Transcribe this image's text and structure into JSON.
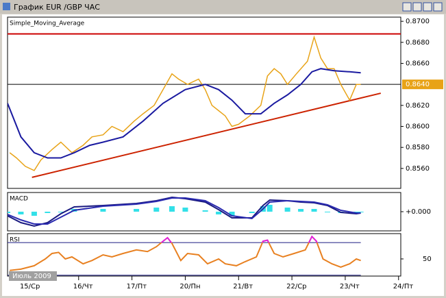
{
  "window": {
    "title": "График EUR /GBP  ЧАС",
    "period_label": "Июль 2009"
  },
  "chart_data": [
    {
      "type": "line",
      "title": "Simple_Moving_Average",
      "xlim": [
        -8,
        169
      ],
      "ylim": [
        0.8541,
        0.8704
      ],
      "yticks": [
        {
          "value": 0.87,
          "label": "0.8700"
        },
        {
          "value": 0.868,
          "label": "0.8680"
        },
        {
          "value": 0.866,
          "label": "0.8660"
        },
        {
          "value": 0.862,
          "label": "0.8620"
        },
        {
          "value": 0.86,
          "label": "0.8600"
        },
        {
          "value": 0.858,
          "label": "0.8580"
        },
        {
          "value": 0.856,
          "label": "0.8560"
        }
      ],
      "hlines": [
        {
          "value": 0.8688,
          "color": "#cc0000"
        },
        {
          "value": 0.864,
          "color": "#000000"
        }
      ],
      "trendline": {
        "x": [
          3,
          160
        ],
        "values": [
          0.85515,
          0.86316
        ],
        "color": "#cc2200"
      },
      "last_price": {
        "value": 0.864,
        "label": "0.8640",
        "color": "#e8a317"
      },
      "series": [
        {
          "color": "#e8a317",
          "x": [
            -7,
            -4,
            0,
            4,
            7,
            12,
            16,
            21,
            26,
            30,
            35,
            39,
            44,
            49,
            53,
            58,
            62,
            66,
            69,
            73,
            78,
            81,
            84,
            87,
            90,
            93,
            96,
            101,
            106,
            109,
            112,
            115,
            118,
            122,
            127,
            130,
            133,
            136,
            139,
            142,
            146,
            149,
            151
          ],
          "values": [
            0.8575,
            0.857,
            0.8562,
            0.8558,
            0.8568,
            0.8578,
            0.8585,
            0.8575,
            0.8582,
            0.859,
            0.8592,
            0.86,
            0.8595,
            0.8605,
            0.8612,
            0.862,
            0.8635,
            0.865,
            0.8645,
            0.864,
            0.8645,
            0.8635,
            0.862,
            0.8615,
            0.861,
            0.86,
            0.8602,
            0.861,
            0.862,
            0.8648,
            0.8655,
            0.865,
            0.864,
            0.865,
            0.8662,
            0.8685,
            0.8665,
            0.8655,
            0.8655,
            0.864,
            0.8625,
            0.864,
            0.864
          ]
        },
        {
          "name": "Simple_Moving_Average",
          "color": "#1a1aa0",
          "x": [
            -8,
            -2,
            4,
            10,
            16,
            22,
            29,
            35,
            44,
            53,
            62,
            72,
            81,
            87,
            93,
            99,
            106,
            112,
            118,
            124,
            129,
            133,
            139,
            146,
            151
          ],
          "values": [
            0.8622,
            0.859,
            0.8575,
            0.857,
            0.857,
            0.8575,
            0.8582,
            0.8585,
            0.859,
            0.8605,
            0.8622,
            0.8635,
            0.864,
            0.8635,
            0.8625,
            0.8612,
            0.8612,
            0.8622,
            0.863,
            0.864,
            0.8652,
            0.8655,
            0.8653,
            0.8652,
            0.8651
          ]
        }
      ]
    },
    {
      "type": "line",
      "title": "MACD",
      "xlim": [
        -8,
        169
      ],
      "ylim": [
        -0.0014,
        0.0014
      ],
      "yticks": [
        {
          "value": 0,
          "label": "+0.000"
        }
      ],
      "series": [
        {
          "type": "bar",
          "color": "#33e0e8",
          "x": [
            -8,
            -2,
            4,
            10,
            16,
            22,
            35,
            50,
            59,
            66,
            72,
            81,
            87,
            93,
            102,
            107,
            110,
            118,
            124,
            130,
            136,
            142,
            149,
            151
          ],
          "values": [
            -0.0001,
            -0.0002,
            -0.0003,
            -0.0001,
            0,
            0.0002,
            0.0002,
            0.0002,
            0.0003,
            0.0004,
            0.0003,
            0.0001,
            -0.0002,
            -0.0003,
            -0.0001,
            0.0004,
            0.0005,
            0.0003,
            0.0002,
            0.0002,
            0,
            -0.0001,
            -0.0001,
            -5e-05
          ]
        },
        {
          "type": "line",
          "color": "#1a1a80",
          "x": [
            -8,
            -2,
            4,
            10,
            16,
            22,
            35,
            50,
            59,
            66,
            72,
            81,
            87,
            93,
            102,
            107,
            110,
            118,
            124,
            130,
            136,
            142,
            149,
            151
          ],
          "values": [
            -0.0003,
            -0.0008,
            -0.00105,
            -0.0008,
            -0.00015,
            0.00035,
            0.00045,
            0.0006,
            0.0008,
            0.00105,
            0.00095,
            0.0007,
            0.00015,
            -0.00045,
            -0.00045,
            0.00045,
            0.00085,
            0.0008,
            0.0007,
            0.00065,
            0.00045,
            -5e-05,
            -0.00015,
            -0.0001
          ]
        },
        {
          "type": "line",
          "color": "#2a2ab0",
          "x": [
            -8,
            -2,
            4,
            10,
            16,
            22,
            35,
            50,
            59,
            66,
            72,
            81,
            87,
            93,
            102,
            107,
            110,
            118,
            124,
            130,
            136,
            142,
            149,
            151
          ],
          "values": [
            -0.0002,
            -0.0006,
            -0.0009,
            -0.0009,
            -0.0004,
            0.0001,
            0.0004,
            0.00055,
            0.00075,
            0.001,
            0.001,
            0.0008,
            0.0003,
            -0.0003,
            -0.0005,
            0.0002,
            0.0007,
            0.0008,
            0.00075,
            0.0007,
            0.0005,
            0.0001,
            -0.0001,
            -0.0001
          ]
        }
      ]
    },
    {
      "type": "line",
      "title": "RSI",
      "xlim": [
        -8,
        169
      ],
      "ylim": [
        29,
        81
      ],
      "yticks": [
        50
      ],
      "levels": [
        70,
        30
      ],
      "level_color": "#1a1a80",
      "overbought_color": "#e020e0",
      "xticks": [
        {
          "value": 0,
          "label": "15/Ср"
        },
        {
          "value": 24,
          "label": "16/Чт"
        },
        {
          "value": 48,
          "label": "17/Пт"
        },
        {
          "value": 72,
          "label": "20/Пн"
        },
        {
          "value": 96,
          "label": "21/Вт"
        },
        {
          "value": 120,
          "label": "22/Ср"
        },
        {
          "value": 144,
          "label": "23/Чт"
        },
        {
          "value": 168,
          "label": "24/Пт"
        }
      ],
      "series": [
        {
          "type": "line",
          "color": "#e88020",
          "x": [
            -7,
            -2,
            4,
            9,
            12,
            15,
            18,
            21,
            26,
            30,
            35,
            39,
            44,
            50,
            55,
            59,
            62,
            64,
            66,
            70,
            73,
            78,
            82,
            87,
            90,
            95,
            99,
            104,
            107,
            109,
            112,
            116,
            121,
            126,
            129,
            131,
            134,
            138,
            142,
            146,
            149,
            151
          ],
          "values": [
            36,
            37.5,
            41.7,
            50,
            56.7,
            58,
            50,
            52.5,
            44,
            48,
            55,
            52.5,
            56.7,
            61,
            59,
            65,
            71.7,
            76,
            69,
            48,
            56.7,
            55,
            44,
            50,
            44,
            41.7,
            46.7,
            52.5,
            71.7,
            73,
            56.7,
            52.5,
            56.7,
            61,
            77.5,
            71.7,
            50,
            44,
            40,
            44,
            50,
            48
          ]
        }
      ]
    }
  ]
}
